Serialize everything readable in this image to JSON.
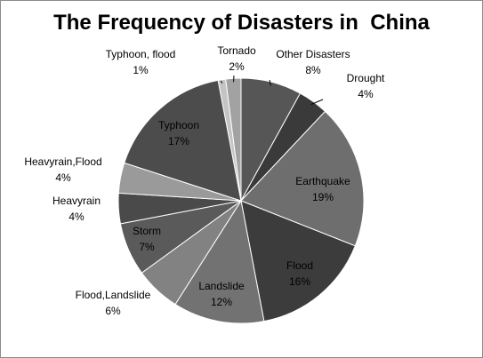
{
  "chart_data": {
    "type": "pie",
    "title": "The Frequency of Disasters in  China",
    "start_angle_deg": 0,
    "direction": "clockwise",
    "slices": [
      {
        "name": "Other Disasters",
        "percent": 8,
        "label": "8%",
        "color": "#565656"
      },
      {
        "name": "Drought",
        "percent": 4,
        "label": "4%",
        "color": "#3a3a3a"
      },
      {
        "name": "Earthquake",
        "percent": 19,
        "label": "19%",
        "color": "#6e6e6e"
      },
      {
        "name": "Flood",
        "percent": 16,
        "label": "16%",
        "color": "#3c3c3c"
      },
      {
        "name": "Landslide",
        "percent": 12,
        "label": "12%",
        "color": "#727272"
      },
      {
        "name": "Flood,Landslide",
        "percent": 6,
        "label": "6%",
        "color": "#828282"
      },
      {
        "name": "Storm",
        "percent": 7,
        "label": "7%",
        "color": "#5a5a5a"
      },
      {
        "name": "Heavyrain",
        "percent": 4,
        "label": "4%",
        "color": "#4a4a4a"
      },
      {
        "name": "Heavyrain,Flood",
        "percent": 4,
        "label": "4%",
        "color": "#9a9a9a"
      },
      {
        "name": "Typhoon",
        "percent": 17,
        "label": "17%",
        "color": "#4c4c4c"
      },
      {
        "name": "Typhoon, flood",
        "percent": 1,
        "label": "1%",
        "color": "#c4c4c4"
      },
      {
        "name": "Tornado",
        "percent": 2,
        "label": "2%",
        "color": "#a2a2a2"
      }
    ]
  }
}
